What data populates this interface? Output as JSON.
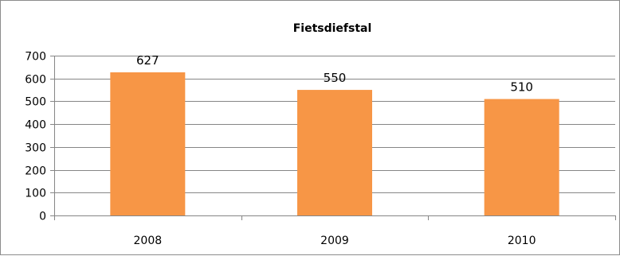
{
  "chart_data": {
    "type": "bar",
    "title": "Fietsdiefstal",
    "xlabel": "",
    "ylabel": "",
    "categories": [
      "2008",
      "2009",
      "2010"
    ],
    "values": [
      627,
      550,
      510
    ],
    "data_labels": [
      "627",
      "550",
      "510"
    ],
    "ylim": [
      0,
      700
    ],
    "yticks": [
      0,
      100,
      200,
      300,
      400,
      500,
      600,
      700
    ],
    "ytick_labels": [
      "0",
      "100",
      "200",
      "300",
      "400",
      "500",
      "600",
      "700"
    ],
    "grid": true,
    "legend": "none",
    "colors": {
      "bar": "#f79646",
      "gridline": "#868686",
      "axis": "#868686",
      "border": "#8c8c8c"
    }
  }
}
